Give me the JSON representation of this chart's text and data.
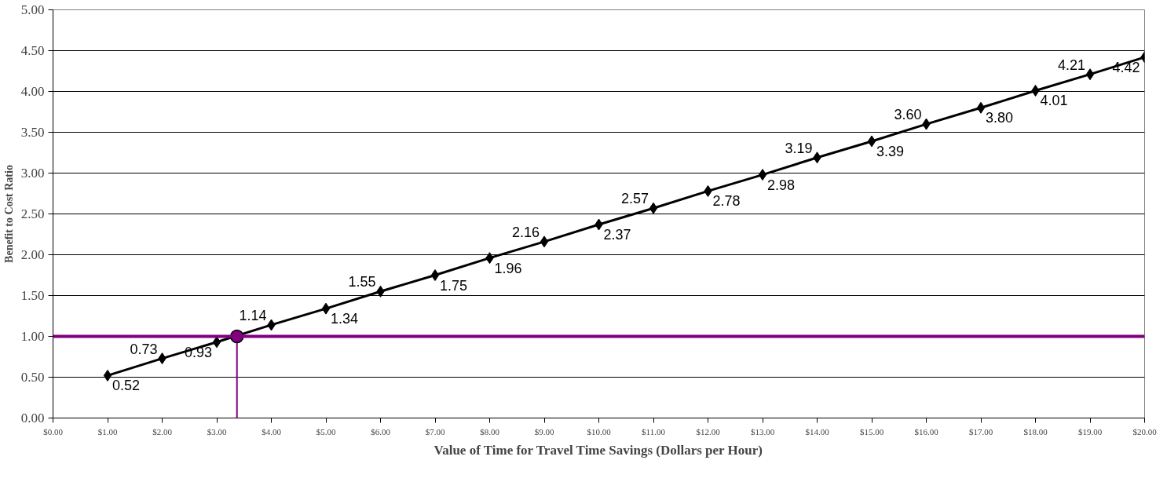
{
  "chart_data": {
    "type": "line",
    "xlabel": "Value of Time for Travel Time Savings (Dollars per Hour)",
    "ylabel": "Benefit to Cost Ratio",
    "xlim": [
      0,
      20
    ],
    "ylim": [
      0,
      5
    ],
    "xticks": [
      {
        "value": 0,
        "label": "$0.00"
      },
      {
        "value": 1,
        "label": "$1.00"
      },
      {
        "value": 2,
        "label": "$2.00"
      },
      {
        "value": 3,
        "label": "$3.00"
      },
      {
        "value": 4,
        "label": "$4.00"
      },
      {
        "value": 5,
        "label": "$5.00"
      },
      {
        "value": 6,
        "label": "$6.00"
      },
      {
        "value": 7,
        "label": "$7.00"
      },
      {
        "value": 8,
        "label": "$8.00"
      },
      {
        "value": 9,
        "label": "$9.00"
      },
      {
        "value": 10,
        "label": "$10.00"
      },
      {
        "value": 11,
        "label": "$11.00"
      },
      {
        "value": 12,
        "label": "$12.00"
      },
      {
        "value": 13,
        "label": "$13.00"
      },
      {
        "value": 14,
        "label": "$14.00"
      },
      {
        "value": 15,
        "label": "$15.00"
      },
      {
        "value": 16,
        "label": "$16.00"
      },
      {
        "value": 17,
        "label": "$17.00"
      },
      {
        "value": 18,
        "label": "$18.00"
      },
      {
        "value": 19,
        "label": "$19.00"
      },
      {
        "value": 20,
        "label": "$20.00"
      }
    ],
    "yticks": [
      {
        "value": 0,
        "label": "0.00"
      },
      {
        "value": 0.5,
        "label": "0.50"
      },
      {
        "value": 1,
        "label": "1.00"
      },
      {
        "value": 1.5,
        "label": "1.50"
      },
      {
        "value": 2,
        "label": "2.00"
      },
      {
        "value": 2.5,
        "label": "2.50"
      },
      {
        "value": 3,
        "label": "3.00"
      },
      {
        "value": 3.5,
        "label": "3.50"
      },
      {
        "value": 4,
        "label": "4.00"
      },
      {
        "value": 4.5,
        "label": "4.50"
      },
      {
        "value": 5,
        "label": "5.00"
      }
    ],
    "grid": "y",
    "ref_lines": [
      {
        "axis": "y",
        "value": 1.0,
        "color": "#800080"
      }
    ],
    "series": [
      {
        "color": "#000000",
        "marker": "diamond",
        "x": [
          1,
          2,
          3,
          4,
          5,
          6,
          7,
          8,
          9,
          10,
          11,
          12,
          13,
          14,
          15,
          16,
          17,
          18,
          19,
          20
        ],
        "values": [
          0.52,
          0.73,
          0.93,
          1.14,
          1.34,
          1.55,
          1.75,
          1.96,
          2.16,
          2.37,
          2.57,
          2.78,
          2.98,
          3.19,
          3.39,
          3.6,
          3.8,
          4.01,
          4.21,
          4.42
        ],
        "value_labels": [
          "0.52",
          "0.73",
          "0.93",
          "1.14",
          "1.34",
          "1.55",
          "1.75",
          "1.96",
          "2.16",
          "2.37",
          "2.57",
          "2.78",
          "2.98",
          "3.19",
          "3.39",
          "3.60",
          "3.80",
          "4.01",
          "4.21",
          "4.42"
        ]
      },
      {
        "type": "line",
        "color": "#800080",
        "marker": "none",
        "x": [
          3.37,
          3.37
        ],
        "values": [
          0,
          1.0
        ]
      },
      {
        "type": "scatter",
        "color": "#800080",
        "marker": "circle",
        "x": [
          3.37
        ],
        "values": [
          1.0
        ]
      }
    ]
  }
}
